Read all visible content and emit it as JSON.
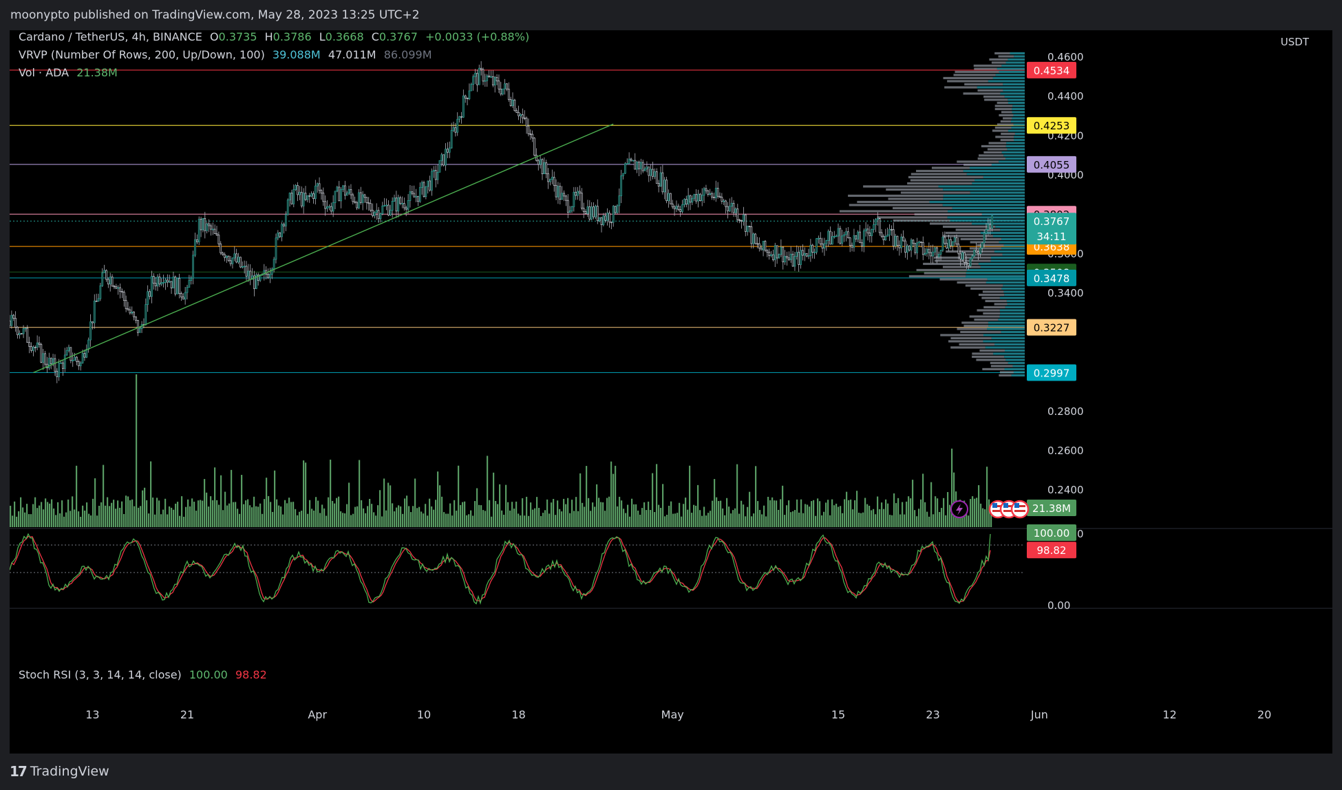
{
  "header": {
    "published": "moonypto published on TradingView.com, May 28, 2023 13:25 UTC+2"
  },
  "legend": {
    "symbol": "Cardano / TetherUS, 4h, BINANCE",
    "o_label": "O",
    "o_value": "0.3735",
    "h_label": "H",
    "h_value": "0.3786",
    "l_label": "L",
    "l_value": "0.3668",
    "c_label": "C",
    "c_value": "0.3767",
    "change": "+0.0033 (+0.88%)",
    "vrvp_label": "VRVP (Number Of Rows, 200, Up/Down, 100)",
    "vrvp_up": "39.088M",
    "vrvp_down": "47.011M",
    "vrvp_total": "86.099M",
    "vol_label": "Vol · ADA",
    "vol_value": "21.38M",
    "stoch_label": "Stoch RSI (3, 3, 14, 14, close)",
    "stoch_k": "100.00",
    "stoch_d": "98.82"
  },
  "footer": {
    "brand": "TradingView"
  },
  "colors": {
    "background": "#000000",
    "candle_up": "#26a69a",
    "wick": "#b2b5be",
    "volume": "#5fa86b",
    "trendline": "#4caf50",
    "stoch_k": "#4caf50",
    "stoch_d": "#f23645"
  },
  "chart_data": [
    {
      "type": "candlestick",
      "title": "Cardano / TetherUS, 4h, BINANCE",
      "currency": "USDT",
      "x_ticks": [
        "13",
        "21",
        "Apr",
        "10",
        "18",
        "May",
        "15",
        "23",
        "Jun",
        "12",
        "20"
      ],
      "y_ticks": [
        "0.4600",
        "0.4400",
        "0.4200",
        "0.4000",
        "0.3600",
        "0.3400",
        "0.2800",
        "0.2600",
        "0.2400"
      ],
      "ylim": [
        0.225,
        0.468
      ],
      "price_path": [
        [
          "Mar 6",
          0.326
        ],
        [
          "Mar 7",
          0.321
        ],
        [
          "Mar 8",
          0.314
        ],
        [
          "Mar 9",
          0.306
        ],
        [
          "Mar 10",
          0.301
        ],
        [
          "Mar 11",
          0.309
        ],
        [
          "Mar 12",
          0.304
        ],
        [
          "Mar 13",
          0.328
        ],
        [
          "Mar 14",
          0.35
        ],
        [
          "Mar 15",
          0.346
        ],
        [
          "Mar 16",
          0.332
        ],
        [
          "Mar 17",
          0.32
        ],
        [
          "Mar 18",
          0.345
        ],
        [
          "Mar 19",
          0.35
        ],
        [
          "Mar 20",
          0.344
        ],
        [
          "Mar 21",
          0.339
        ],
        [
          "Mar 22",
          0.375
        ],
        [
          "Mar 23",
          0.372
        ],
        [
          "Mar 24",
          0.362
        ],
        [
          "Mar 25",
          0.357
        ],
        [
          "Mar 26",
          0.35
        ],
        [
          "Mar 27",
          0.344
        ],
        [
          "Mar 28",
          0.353
        ],
        [
          "Mar 29",
          0.376
        ],
        [
          "Mar 30",
          0.392
        ],
        [
          "Mar 31",
          0.386
        ],
        [
          "Apr 1",
          0.394
        ],
        [
          "Apr 2",
          0.383
        ],
        [
          "Apr 3",
          0.393
        ],
        [
          "Apr 4",
          0.389
        ],
        [
          "Apr 5",
          0.385
        ],
        [
          "Apr 6",
          0.382
        ],
        [
          "Apr 7",
          0.384
        ],
        [
          "Apr 8",
          0.386
        ],
        [
          "Apr 9",
          0.388
        ],
        [
          "Apr 10",
          0.393
        ],
        [
          "Apr 11",
          0.4
        ],
        [
          "Apr 12",
          0.413
        ],
        [
          "Apr 13",
          0.431
        ],
        [
          "Apr 14",
          0.448
        ],
        [
          "Apr 15",
          0.451
        ],
        [
          "Apr 16",
          0.446
        ],
        [
          "Apr 17",
          0.443
        ],
        [
          "Apr 18",
          0.433
        ],
        [
          "Apr 19",
          0.419
        ],
        [
          "Apr 20",
          0.404
        ],
        [
          "Apr 21",
          0.395
        ],
        [
          "Apr 22",
          0.385
        ],
        [
          "Apr 23",
          0.388
        ],
        [
          "Apr 24",
          0.382
        ],
        [
          "Apr 25",
          0.379
        ],
        [
          "Apr 26",
          0.38
        ],
        [
          "Apr 27",
          0.403
        ],
        [
          "Apr 28",
          0.406
        ],
        [
          "Apr 29",
          0.402
        ],
        [
          "Apr 30",
          0.398
        ],
        [
          "May 1",
          0.385
        ],
        [
          "May 2",
          0.385
        ],
        [
          "May 3",
          0.39
        ],
        [
          "May 4",
          0.391
        ],
        [
          "May 5",
          0.388
        ],
        [
          "May 6",
          0.384
        ],
        [
          "May 7",
          0.378
        ],
        [
          "May 8",
          0.364
        ],
        [
          "May 9",
          0.361
        ],
        [
          "May 10",
          0.362
        ],
        [
          "May 11",
          0.356
        ],
        [
          "May 12",
          0.359
        ],
        [
          "May 13",
          0.365
        ],
        [
          "May 14",
          0.367
        ],
        [
          "May 15",
          0.37
        ],
        [
          "May 16",
          0.368
        ],
        [
          "May 17",
          0.366
        ],
        [
          "May 18",
          0.376
        ],
        [
          "May 19",
          0.37
        ],
        [
          "May 20",
          0.366
        ],
        [
          "May 21",
          0.365
        ],
        [
          "May 22",
          0.362
        ],
        [
          "May 23",
          0.36
        ],
        [
          "May 24",
          0.368
        ],
        [
          "May 25",
          0.363
        ],
        [
          "May 26",
          0.357
        ],
        [
          "May 27",
          0.363
        ],
        [
          "May 28",
          0.377
        ]
      ],
      "horizontal_levels": [
        {
          "value": 0.4534,
          "label": "0.4534",
          "color": "#f23645"
        },
        {
          "value": 0.4253,
          "label": "0.4253",
          "color": "#ffeb3b"
        },
        {
          "value": 0.4055,
          "label": "0.4055",
          "color": "#b39ddb"
        },
        {
          "value": 0.3802,
          "label": "0.3802",
          "color": "#f48fb1"
        },
        {
          "value": 0.3638,
          "label": "0.3638",
          "color": "#ff9800"
        },
        {
          "value": 0.3508,
          "label": "0.3508",
          "color": "#1b5e20"
        },
        {
          "value": 0.3478,
          "label": "0.3478",
          "color": "#0097a7"
        },
        {
          "value": 0.3227,
          "label": "0.3227",
          "color": "#ffcc80"
        },
        {
          "value": 0.2997,
          "label": "0.2997",
          "color": "#00acc1"
        }
      ],
      "current_price": {
        "value": 0.3767,
        "label": "0.3767",
        "countdown": "34:11"
      },
      "trendline": {
        "from": [
          "Mar 8",
          0.2997
        ],
        "to": [
          "Apr 26",
          0.426
        ]
      }
    },
    {
      "type": "bar",
      "title": "Vol · ADA",
      "current_label": "21.38M"
    },
    {
      "type": "line",
      "title": "Stoch RSI (3, 3, 14, 14, close)",
      "y_ticks": [
        "100.00",
        "0.00"
      ],
      "series": [
        {
          "name": "K",
          "value_label": "100.00",
          "color": "#4caf50"
        },
        {
          "name": "D",
          "value_label": "98.82",
          "color": "#f23645"
        }
      ]
    }
  ]
}
